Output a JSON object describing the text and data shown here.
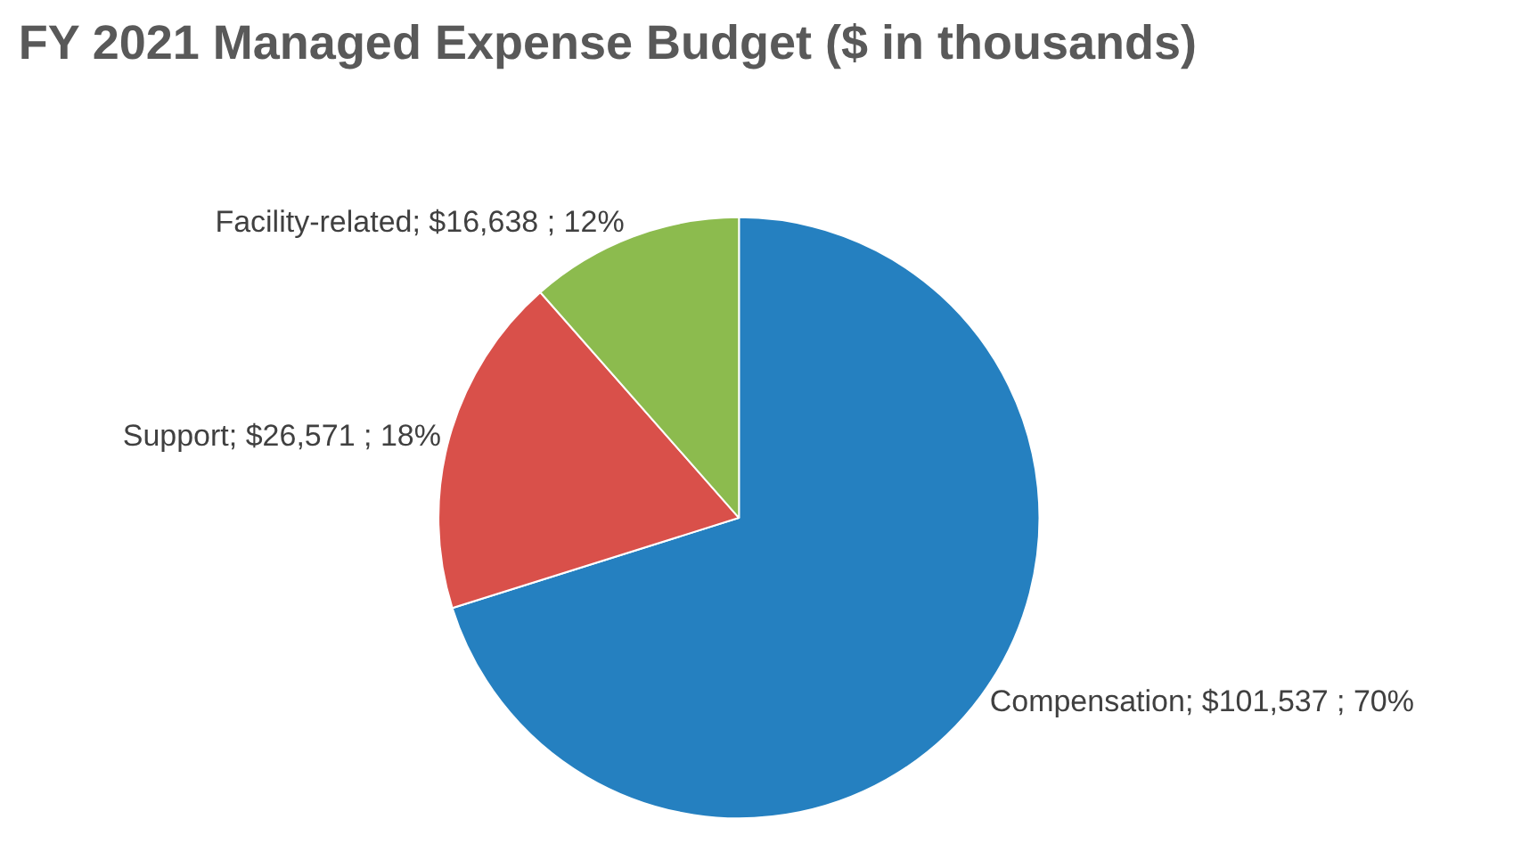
{
  "chart_data": {
    "type": "pie",
    "title": "FY 2021 Managed Expense Budget ($ in thousands)",
    "categories": [
      "Compensation",
      "Support",
      "Facility-related"
    ],
    "values": [
      101537,
      26571,
      16638
    ],
    "value_labels": [
      "$101,537 ; 70%",
      "$26,571 ; 18%",
      "$16,638 ; 12%"
    ],
    "colors": [
      "#2580c0",
      "#d9504a",
      "#8cbb4e"
    ],
    "legend": false
  }
}
